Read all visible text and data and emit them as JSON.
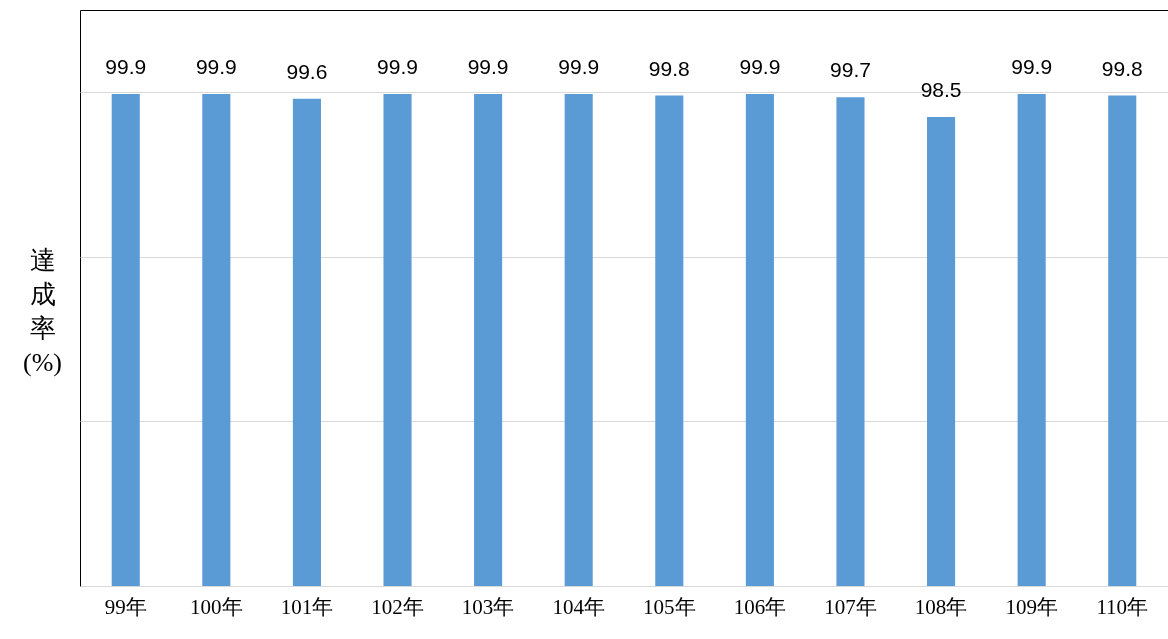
{
  "chart_data": {
    "type": "bar",
    "ylabel": "達成率(%)",
    "categories": [
      "99年",
      "100年",
      "101年",
      "102年",
      "103年",
      "104年",
      "105年",
      "106年",
      "107年",
      "108年",
      "109年",
      "110年"
    ],
    "values": [
      99.9,
      99.9,
      99.6,
      99.9,
      99.9,
      99.9,
      99.8,
      99.9,
      99.7,
      98.5,
      99.9,
      99.8
    ],
    "color": "#5b9bd5",
    "ylim": [
      70,
      105
    ],
    "yticks": [
      {
        "value": 70,
        "label": null
      },
      {
        "value": 80,
        "label": null
      },
      {
        "value": 90,
        "label": null
      },
      {
        "value": 100,
        "label": null
      }
    ],
    "grid": "y",
    "data_labels": true
  }
}
